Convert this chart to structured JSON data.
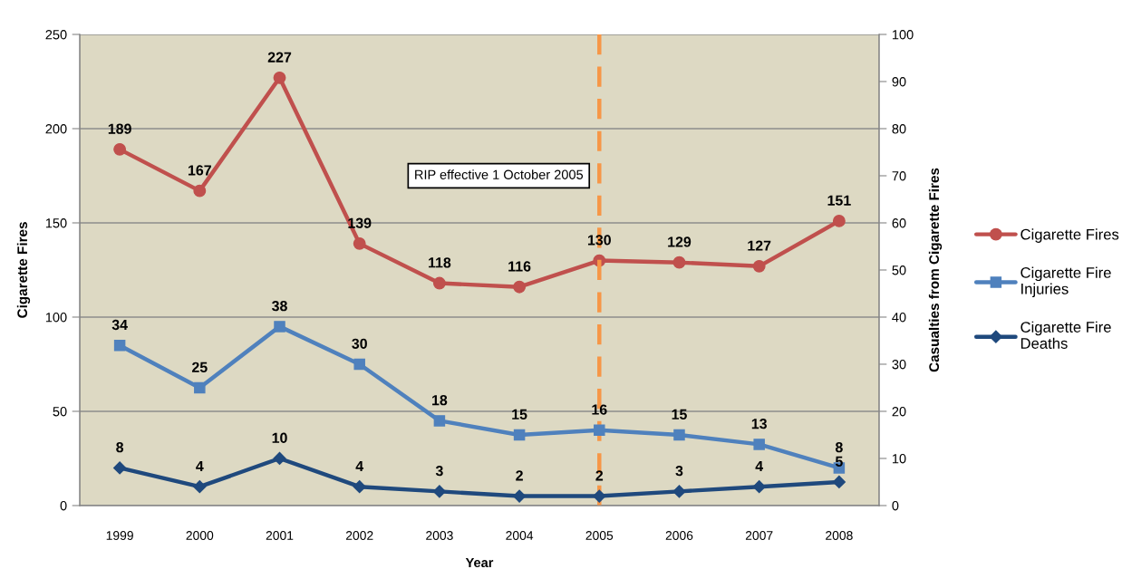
{
  "chart_data": {
    "type": "line",
    "xlabel": "Year",
    "ylabel": "Cigarette Fires",
    "y2label": "Casualties from Cigarette Fires",
    "categories": [
      "1999",
      "2000",
      "2001",
      "2002",
      "2003",
      "2004",
      "2005",
      "2006",
      "2007",
      "2008"
    ],
    "ylim": [
      0,
      250
    ],
    "yticks": [
      0,
      50,
      100,
      150,
      200,
      250
    ],
    "y2lim": [
      0,
      100
    ],
    "y2ticks": [
      0,
      10,
      20,
      30,
      40,
      50,
      60,
      70,
      80,
      90,
      100
    ],
    "grid": "y",
    "legend": "right",
    "data_labels": true,
    "line_style": "solid",
    "series": [
      {
        "name": "Cigarette Fires",
        "color": "#c0504d",
        "marker": "circle",
        "values": [
          189,
          167,
          227,
          139,
          118,
          116,
          130,
          129,
          127,
          151
        ]
      },
      {
        "name": "Cigarette Fire Injuries",
        "color": "#4f81bd",
        "marker": "square",
        "axis": "y2",
        "values": [
          34,
          25,
          38,
          30,
          18,
          15,
          16,
          15,
          13,
          8
        ]
      },
      {
        "name": "Cigarette Fire Deaths",
        "color": "#1f497d",
        "marker": "diamond",
        "axis": "y2",
        "values": [
          8,
          4,
          10,
          4,
          3,
          2,
          2,
          3,
          4,
          5
        ]
      }
    ],
    "ref_lines": [
      {
        "axis": "x",
        "value": "2005",
        "label": "RIP effective 1 October 2005",
        "color": "#f79646",
        "line_style": "dashed"
      }
    ]
  }
}
